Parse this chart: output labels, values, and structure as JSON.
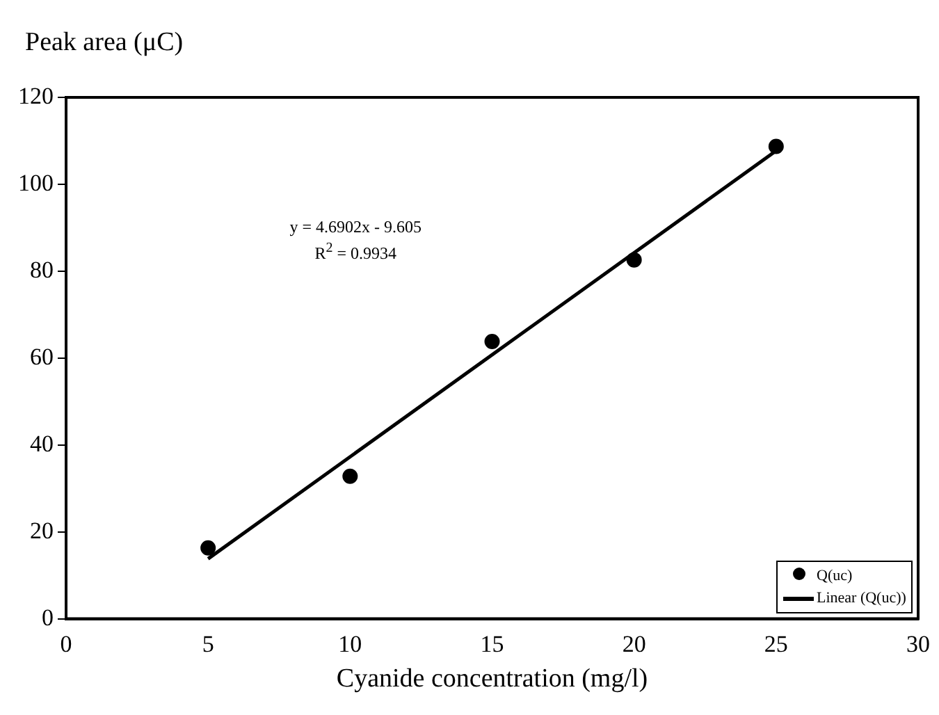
{
  "chart_data": {
    "type": "scatter",
    "ylabel": "Peak area (μC)",
    "xlabel": "Cyanide concentration (mg/l)",
    "xlim": [
      0,
      30
    ],
    "xticks": [
      0,
      5,
      10,
      15,
      20,
      25,
      30
    ],
    "ylim": [
      0,
      120
    ],
    "yticks": [
      0,
      20,
      40,
      60,
      80,
      100,
      120
    ],
    "grid": false,
    "legend": "bottom right",
    "marker": "circle",
    "annotations": [
      "y = 4.6902x - 9.605",
      "R$^{2}$ = 0.9934"
    ],
    "series": [
      {
        "name": "Q(uc)",
        "color": "#000000",
        "x": [
          5,
          10,
          15,
          20,
          25
        ],
        "values": [
          16.3,
          32.8,
          63.8,
          82.6,
          108.7
        ]
      },
      {
        "name": "Linear (Q(uc))",
        "type": "line",
        "color": "#000000",
        "x": [
          5,
          25
        ],
        "values": [
          13.8,
          107.7
        ],
        "line_style": "solid",
        "marker": "none"
      }
    ]
  }
}
